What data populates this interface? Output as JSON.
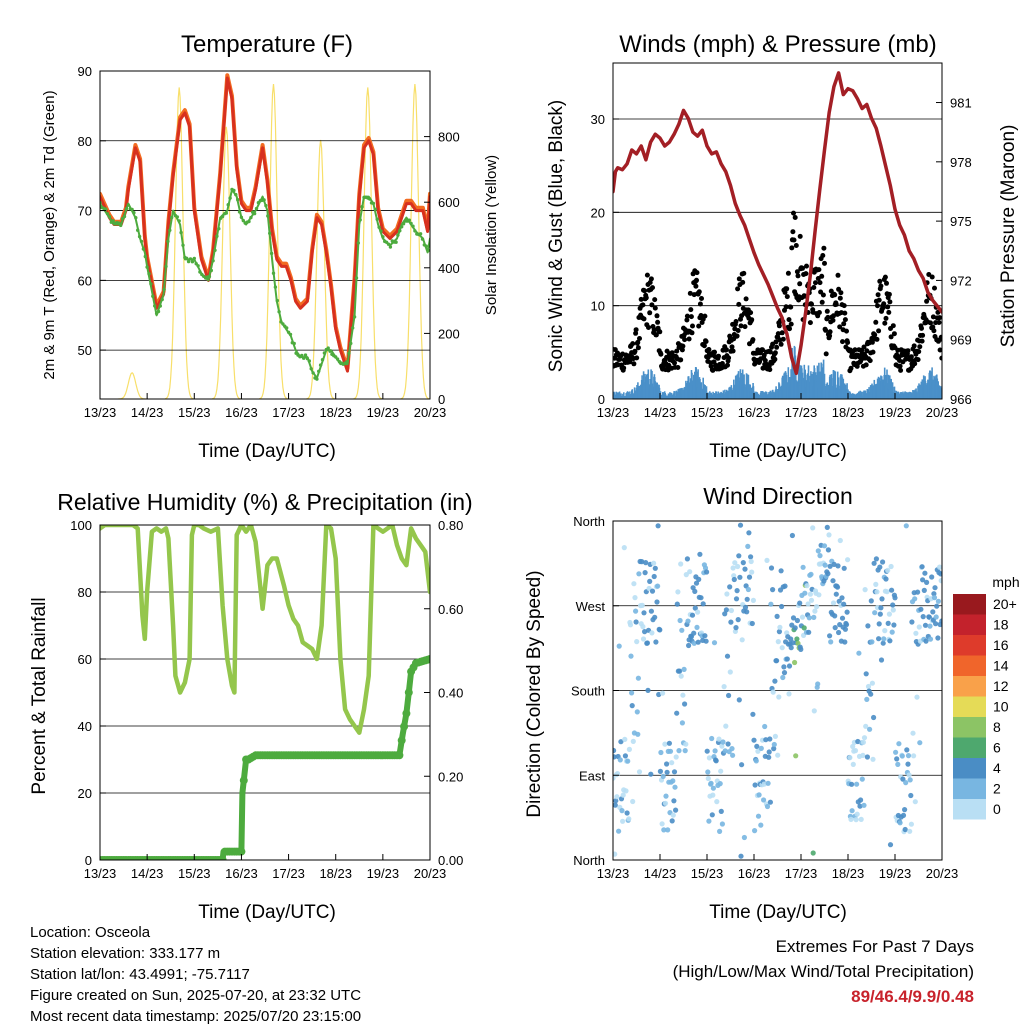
{
  "x_ticks": [
    "13/23",
    "14/23",
    "15/23",
    "16/23",
    "17/23",
    "18/23",
    "19/23",
    "20/23"
  ],
  "chart_data": [
    {
      "type": "line",
      "title": "Temperature (F)",
      "xlabel": "Time (Day/UTC)",
      "ylabel": "2m & 9m T (Red, Orange) & 2m Td (Green)",
      "ylabel_right": "Solar Insolation (Yellow)",
      "ylim": [
        43,
        90
      ],
      "y_ticks": [
        50,
        60,
        70,
        80,
        90
      ],
      "ylim_right": [
        0,
        1000
      ],
      "y_ticks_right": [
        0,
        200,
        400,
        600,
        800
      ],
      "grid": "horizontal",
      "x_days": [
        13,
        14,
        15,
        16,
        17,
        18,
        19,
        20
      ],
      "series": [
        {
          "name": "2m T",
          "color": "#d7301f",
          "x": [
            0.0,
            0.2,
            0.3,
            0.45,
            0.55,
            0.6,
            0.75,
            0.85,
            0.95,
            1.0,
            1.2,
            1.35,
            1.45,
            1.55,
            1.7,
            1.8,
            1.9,
            2.0,
            2.15,
            2.3,
            2.4,
            2.55,
            2.7,
            2.8,
            2.9,
            3.0,
            3.1,
            3.2,
            3.3,
            3.45,
            3.55,
            3.65,
            3.75,
            3.85,
            3.95,
            4.05,
            4.15,
            4.25,
            4.4,
            4.5,
            4.6,
            4.7,
            4.8,
            4.9,
            5.0,
            5.1,
            5.25,
            5.4,
            5.5,
            5.6,
            5.7,
            5.8,
            5.9,
            6.0,
            6.15,
            6.3,
            6.4,
            6.5,
            6.6,
            6.7,
            6.85,
            6.95,
            7.0
          ],
          "values": [
            72,
            69,
            68,
            68,
            70,
            73,
            79,
            77,
            66,
            63,
            56,
            58,
            68,
            75,
            83,
            84,
            82,
            70,
            63,
            60,
            64,
            75,
            89,
            86,
            76,
            71,
            70,
            70,
            73,
            79,
            74,
            67,
            63,
            62,
            62,
            60,
            57,
            56,
            57,
            64,
            69,
            68,
            64,
            59,
            53,
            50,
            47,
            60,
            72,
            79,
            80,
            78,
            70,
            67,
            66,
            67,
            69,
            71,
            71,
            70,
            70,
            67,
            72
          ]
        },
        {
          "name": "9m T",
          "color": "#f26b21",
          "x": [
            0.0,
            0.2,
            0.3,
            0.45,
            0.55,
            0.6,
            0.75,
            0.85,
            0.95,
            1.0,
            1.2,
            1.35,
            1.45,
            1.55,
            1.7,
            1.8,
            1.9,
            2.0,
            2.15,
            2.3,
            2.4,
            2.55,
            2.7,
            2.8,
            2.9,
            3.0,
            3.1,
            3.2,
            3.3,
            3.45,
            3.55,
            3.65,
            3.75,
            3.85,
            3.95,
            4.05,
            4.15,
            4.25,
            4.4,
            4.5,
            4.6,
            4.7,
            4.8,
            4.9,
            5.0,
            5.1,
            5.25,
            5.4,
            5.5,
            5.6,
            5.7,
            5.8,
            5.9,
            6.0,
            6.15,
            6.3,
            6.4,
            6.5,
            6.6,
            6.7,
            6.85,
            6.95,
            7.0
          ],
          "values": [
            72.4,
            69.4,
            68.4,
            68.4,
            70.4,
            73.4,
            79.4,
            77.4,
            66.4,
            63.4,
            56.4,
            58.4,
            68.4,
            75.4,
            83.4,
            84.4,
            82.4,
            70.4,
            63.4,
            60.4,
            64.4,
            75.4,
            89.4,
            86.4,
            76.4,
            71.4,
            70.4,
            70.4,
            73.4,
            79.4,
            74.4,
            67.4,
            63.4,
            62.4,
            62.4,
            60.4,
            57.4,
            56.4,
            57.4,
            64.4,
            69.4,
            68.4,
            64.4,
            59.4,
            53.4,
            50.4,
            47.4,
            60.4,
            72.4,
            79.4,
            80.4,
            78.4,
            70.4,
            67.4,
            66.4,
            67.4,
            69.4,
            71.4,
            71.4,
            70.4,
            70.4,
            67.4,
            72.4
          ]
        },
        {
          "name": "2m Td",
          "color": "#4dab3e",
          "x": [
            0.0,
            0.2,
            0.3,
            0.45,
            0.55,
            0.6,
            0.75,
            0.85,
            0.95,
            1.0,
            1.2,
            1.35,
            1.45,
            1.55,
            1.7,
            1.8,
            1.9,
            2.0,
            2.15,
            2.3,
            2.4,
            2.55,
            2.7,
            2.8,
            2.9,
            3.0,
            3.1,
            3.2,
            3.3,
            3.45,
            3.55,
            3.65,
            3.75,
            3.85,
            3.95,
            4.05,
            4.15,
            4.25,
            4.4,
            4.5,
            4.6,
            4.7,
            4.8,
            4.9,
            5.0,
            5.1,
            5.25,
            5.4,
            5.5,
            5.6,
            5.7,
            5.8,
            5.9,
            6.0,
            6.15,
            6.3,
            6.4,
            6.5,
            6.6,
            6.7,
            6.85,
            6.95,
            7.0
          ],
          "values": [
            71,
            69,
            68,
            68,
            70,
            71,
            69,
            66,
            64,
            62,
            55,
            58,
            66,
            70,
            68,
            63,
            63,
            63,
            61,
            60,
            63,
            69,
            70,
            73,
            72,
            69,
            68,
            69,
            70,
            72,
            70,
            63,
            57,
            54,
            53,
            52,
            50,
            49,
            49,
            47,
            46,
            48,
            50,
            50,
            49,
            48,
            48,
            55,
            68,
            72,
            72,
            71,
            68,
            66,
            65,
            66,
            68,
            69,
            68,
            67,
            66,
            64,
            66
          ]
        },
        {
          "name": "Solar Insolation",
          "color": "#f8df6a",
          "axis": "right",
          "peaks": [
            80,
            950,
            830,
            960,
            790,
            950,
            960,
            790
          ],
          "peak_day_offset": 0.68
        }
      ]
    },
    {
      "type": "scatter",
      "title": "Winds (mph) & Pressure (mb)",
      "xlabel": "Time (Day/UTC)",
      "ylabel": "Sonic Wind & Gust (Blue, Black)",
      "ylabel_right": "Station Pressure (Maroon)",
      "ylim": [
        0,
        36
      ],
      "y_ticks": [
        0,
        10,
        20,
        30
      ],
      "ylim_right": [
        966,
        983
      ],
      "y_ticks_right": [
        966,
        969,
        972,
        975,
        978,
        981
      ],
      "grid": "horizontal",
      "series": [
        {
          "name": "Station Pressure",
          "type": "line",
          "color": "#a31f25",
          "axis": "right",
          "x": [
            0.0,
            0.05,
            0.1,
            0.2,
            0.3,
            0.4,
            0.5,
            0.6,
            0.7,
            0.8,
            0.9,
            1.0,
            1.1,
            1.2,
            1.3,
            1.4,
            1.5,
            1.6,
            1.7,
            1.8,
            1.9,
            2.0,
            2.1,
            2.2,
            2.3,
            2.4,
            2.5,
            2.6,
            2.7,
            2.8,
            2.9,
            3.0,
            3.1,
            3.2,
            3.3,
            3.4,
            3.5,
            3.6,
            3.65,
            3.7,
            3.8,
            3.9,
            4.0,
            4.1,
            4.2,
            4.3,
            4.4,
            4.5,
            4.6,
            4.7,
            4.8,
            4.9,
            5.0,
            5.1,
            5.2,
            5.3,
            5.4,
            5.5,
            5.6,
            5.7,
            5.8,
            5.9,
            6.0,
            6.1,
            6.2,
            6.3,
            6.4,
            6.5,
            6.6,
            6.7,
            6.8,
            6.9,
            7.0
          ],
          "values": [
            976.5,
            977.5,
            977.7,
            977.6,
            977.9,
            978.6,
            978.4,
            978.8,
            978.1,
            979.0,
            979.4,
            979.2,
            978.8,
            979.0,
            979.4,
            979.9,
            980.6,
            980.2,
            979.5,
            979.3,
            979.6,
            978.8,
            978.4,
            978.5,
            977.9,
            977.5,
            976.8,
            975.9,
            975.3,
            974.8,
            974.1,
            973.4,
            972.8,
            972.3,
            971.8,
            971.2,
            970.6,
            970.1,
            969.6,
            969.3,
            968.1,
            967.3,
            968.7,
            970.4,
            972.3,
            974.5,
            976.6,
            978.6,
            980.5,
            981.8,
            982.5,
            981.4,
            981.7,
            981.6,
            981.2,
            980.7,
            980.9,
            980.2,
            979.7,
            978.8,
            977.8,
            976.8,
            975.6,
            974.8,
            974.3,
            973.5,
            973.1,
            972.5,
            972.1,
            971.4,
            971.0,
            970.7,
            970.4
          ]
        },
        {
          "name": "Sonic Gust",
          "type": "scatter",
          "color": "#000000"
        },
        {
          "name": "Sonic Wind",
          "type": "scatter",
          "color": "#4a90c9"
        }
      ],
      "max_wind": 9.9
    },
    {
      "type": "line",
      "title": "Relative Humidity (%) & Precipitation (in)",
      "xlabel": "Time (Day/UTC)",
      "ylabel": "Percent & Total Rainfall",
      "ylim": [
        0,
        100
      ],
      "y_ticks": [
        0,
        20,
        40,
        60,
        80,
        100
      ],
      "ylim_right": [
        0,
        0.8
      ],
      "y_ticks_right": [
        "0.00",
        "0.20",
        "0.40",
        "0.60",
        "0.80"
      ],
      "grid": "horizontal",
      "series": [
        {
          "name": "Relative Humidity",
          "color": "#94c64c",
          "x": [
            0.0,
            0.1,
            0.3,
            0.5,
            0.7,
            0.8,
            0.9,
            0.95,
            1.0,
            1.1,
            1.2,
            1.3,
            1.4,
            1.45,
            1.55,
            1.6,
            1.7,
            1.8,
            1.9,
            1.95,
            2.0,
            2.1,
            2.2,
            2.35,
            2.5,
            2.6,
            2.7,
            2.8,
            2.85,
            2.9,
            3.0,
            3.1,
            3.2,
            3.3,
            3.45,
            3.55,
            3.65,
            3.75,
            3.9,
            4.0,
            4.1,
            4.2,
            4.3,
            4.4,
            4.5,
            4.6,
            4.7,
            4.8,
            4.9,
            5.0,
            5.1,
            5.2,
            5.3,
            5.4,
            5.5,
            5.6,
            5.7,
            5.8,
            5.9,
            6.0,
            6.2,
            6.3,
            6.4,
            6.5,
            6.6,
            6.7,
            6.8,
            6.9,
            7.0
          ],
          "values": [
            99,
            100,
            100,
            100,
            100,
            99,
            73,
            66,
            80,
            98,
            99,
            98,
            99,
            96,
            70,
            55,
            50,
            53,
            60,
            97,
            100,
            100,
            99,
            98,
            99,
            76,
            60,
            52,
            50,
            97,
            100,
            98,
            100,
            95,
            75,
            88,
            90,
            90,
            82,
            76,
            72,
            70,
            65,
            64,
            63,
            60,
            70,
            100,
            99,
            90,
            60,
            45,
            42,
            40,
            38,
            45,
            55,
            100,
            99,
            98,
            100,
            94,
            90,
            88,
            99,
            96,
            94,
            92,
            80
          ]
        },
        {
          "name": "Total Precipitation",
          "color": "#4dab3e",
          "axis": "right",
          "x": [
            0.0,
            2.6,
            2.62,
            2.65,
            2.7,
            2.72,
            3.0,
            3.02,
            3.05,
            3.1,
            3.15,
            3.3,
            3.5,
            5.0,
            6.0,
            6.35,
            6.42,
            6.5,
            6.55,
            6.6,
            6.7,
            7.0
          ],
          "values": [
            0.0,
            0.0,
            0.02,
            0.02,
            0.02,
            0.02,
            0.02,
            0.16,
            0.19,
            0.24,
            0.24,
            0.25,
            0.25,
            0.25,
            0.25,
            0.25,
            0.3,
            0.35,
            0.4,
            0.45,
            0.47,
            0.48
          ]
        }
      ]
    },
    {
      "type": "scatter",
      "title": "Wind Direction",
      "xlabel": "Time (Day/UTC)",
      "ylabel": "Direction (Colored By Speed)",
      "y_ticks": [
        "North",
        "East",
        "South",
        "West",
        "North"
      ],
      "ylim": [
        0,
        360
      ],
      "grid": "horizontal",
      "colorbar": {
        "title": "mph",
        "labels": [
          "20+",
          "18",
          "16",
          "14",
          "12",
          "10",
          "8",
          "6",
          "4",
          "2",
          "0"
        ],
        "colors": [
          "#99191e",
          "#c3222c",
          "#de3b2b",
          "#f0652b",
          "#f9a14a",
          "#e5db57",
          "#8cc465",
          "#4ea86e",
          "#4a8dc5",
          "#78b6e1",
          "#b9dff4"
        ]
      }
    }
  ],
  "info": {
    "location": "Location: Osceola",
    "elevation": "Station elevation: 333.177 m",
    "latlon": "Station lat/lon: 43.4991; -75.7117",
    "created": "Figure created on Sun, 2025-07-20, at 23:32 UTC",
    "recent": "Most recent data timestamp: 2025/07/20 23:15:00"
  },
  "extremes": {
    "title": "Extremes For Past 7 Days",
    "subtitle": "(High/Low/Max Wind/Total Precipitation)",
    "values": "89/46.4/9.9/0.48"
  }
}
